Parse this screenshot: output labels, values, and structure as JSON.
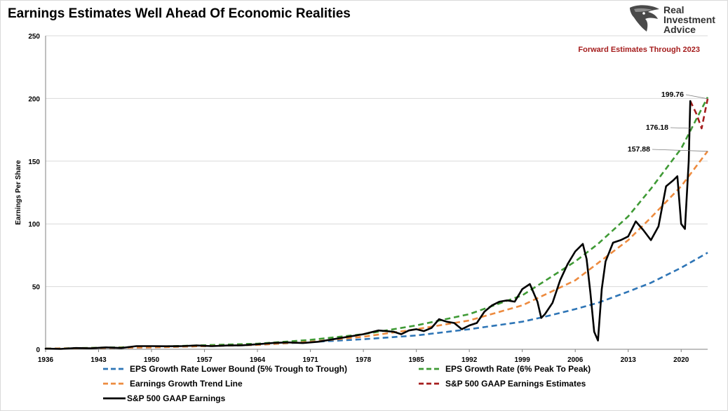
{
  "page": {
    "title": "Earnings Estimates Well Ahead Of Economic Realities",
    "logo": {
      "lines": [
        "Real",
        "Investment",
        "Advice"
      ],
      "icon": "eagle-head-icon"
    }
  },
  "chart_data": {
    "type": "line",
    "title": "Earnings Estimates Well Ahead Of Economic Realities",
    "xlabel": "",
    "ylabel": "Earnings Per Share",
    "xlim": [
      1936,
      2023.5
    ],
    "ylim": [
      0,
      250
    ],
    "x_ticks": [
      1936,
      1943,
      1950,
      1957,
      1964,
      1971,
      1978,
      1985,
      1992,
      1999,
      2006,
      2013,
      2020
    ],
    "y_ticks": [
      0,
      50,
      100,
      150,
      200,
      250
    ],
    "grid": "horizontal",
    "legend_position": "bottom",
    "annotations": [
      {
        "text": "Forward Estimates Through 2023",
        "color": "#a51d1d",
        "position": "top-right"
      },
      {
        "text": "199.76",
        "target": [
          2023.5,
          199.76
        ]
      },
      {
        "text": "176.18",
        "target": [
          2021.5,
          176.18
        ]
      },
      {
        "text": "157.88",
        "target": [
          2023.5,
          157.88
        ]
      }
    ],
    "series": [
      {
        "name": "EPS Growth Rate Lower Bound (5% Trough to Trough)",
        "style": "dashed",
        "color": "#2e75b6",
        "x": [
          1936,
          1950,
          1964,
          1978,
          1985,
          1992,
          1999,
          2002,
          2006,
          2009,
          2013,
          2016,
          2020,
          2023.5
        ],
        "y": [
          0.5,
          1.5,
          3.5,
          8,
          11,
          16,
          22,
          26,
          32,
          37,
          46,
          53,
          65,
          77
        ]
      },
      {
        "name": "EPS Growth Rate (6% Peak To Peak)",
        "style": "dashed",
        "color": "#3f9a35",
        "x": [
          1936,
          1950,
          1964,
          1971,
          1978,
          1985,
          1992,
          1999,
          2006,
          2009,
          2013,
          2016,
          2020,
          2023.5
        ],
        "y": [
          0.5,
          2,
          4.5,
          7.5,
          12,
          19,
          28,
          43,
          70,
          84,
          106,
          128,
          160,
          201
        ]
      },
      {
        "name": "Earnings Growth Trend Line",
        "style": "dashed",
        "color": "#ed8b3f",
        "x": [
          1936,
          1950,
          1964,
          1971,
          1978,
          1985,
          1992,
          1999,
          2006,
          2013,
          2016,
          2020,
          2023.5
        ],
        "y": [
          0.5,
          1.5,
          3.5,
          6,
          10,
          16,
          23,
          35,
          55,
          87,
          105,
          130,
          158
        ]
      },
      {
        "name": "S&P 500 GAAP Earnings Estimates",
        "style": "dashed",
        "color": "#a51d1d",
        "x": [
          2021.2,
          2022.0,
          2022.7,
          2023.5
        ],
        "y": [
          198,
          188,
          176.18,
          199.76
        ]
      },
      {
        "name": "S&P 500 GAAP Earnings",
        "style": "solid",
        "color": "#000000",
        "x": [
          1936,
          1938,
          1940,
          1942,
          1944,
          1946,
          1948,
          1950,
          1952,
          1954,
          1956,
          1958,
          1960,
          1962,
          1964,
          1966,
          1968,
          1970,
          1972,
          1974,
          1976,
          1978,
          1980,
          1981,
          1982,
          1983,
          1984,
          1985,
          1986,
          1987,
          1988,
          1989,
          1990,
          1991,
          1992,
          1993,
          1994,
          1995,
          1996,
          1997,
          1998,
          1999,
          2000,
          2001,
          2001.5,
          2002,
          2003,
          2004,
          2005,
          2006,
          2007,
          2007.5,
          2008,
          2008.5,
          2009,
          2009.5,
          2010,
          2011,
          2012,
          2013,
          2014,
          2015,
          2016,
          2017,
          2018,
          2019,
          2019.5,
          2020,
          2020.5,
          2021,
          2021.2
        ],
        "y": [
          0.5,
          0.3,
          1,
          0.8,
          1.5,
          1,
          2.5,
          2.5,
          2.4,
          2.5,
          3,
          2.5,
          3,
          3.2,
          4,
          5,
          5.5,
          5,
          6,
          8,
          10,
          12,
          15,
          14.5,
          14,
          12,
          15,
          16,
          14.5,
          17,
          24,
          22,
          21,
          16,
          19,
          21,
          30,
          35,
          38,
          39,
          38,
          48,
          52,
          38,
          25,
          28,
          37,
          55,
          68,
          78,
          84,
          72,
          45,
          14,
          7,
          48,
          70,
          85,
          87,
          90,
          102,
          95,
          87,
          98,
          130,
          135,
          138,
          100,
          96,
          150,
          198
        ]
      }
    ]
  }
}
